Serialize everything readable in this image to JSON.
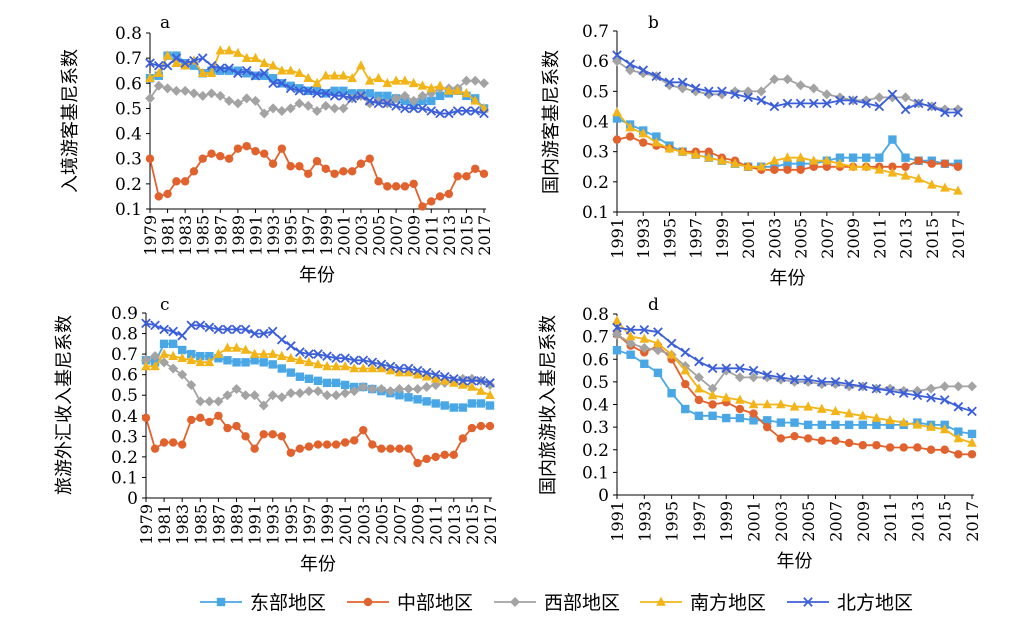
{
  "legend": [
    {
      "name": "东部地区",
      "color": "#4aa7e6",
      "marker": "square"
    },
    {
      "name": "中部地区",
      "color": "#e2622e",
      "marker": "circle"
    },
    {
      "name": "西部地区",
      "color": "#a3a3a3",
      "marker": "diamond"
    },
    {
      "name": "南方地区",
      "color": "#f3b418",
      "marker": "triangle"
    },
    {
      "name": "北方地区",
      "color": "#3b5fd9",
      "marker": "x"
    }
  ],
  "chart_data": [
    {
      "type": "line",
      "panel": "a",
      "title": "a",
      "xlabel": "年份",
      "ylabel": "入境游客基尼系数",
      "ylim": [
        0.1,
        0.8
      ],
      "yticks": [
        "0.1",
        "0.2",
        "0.3",
        "0.4",
        "0.5",
        "0.6",
        "0.7",
        "0.8"
      ],
      "x": [
        1979,
        1980,
        1981,
        1982,
        1983,
        1984,
        1985,
        1986,
        1987,
        1988,
        1989,
        1990,
        1991,
        1992,
        1993,
        1994,
        1995,
        1996,
        1997,
        1998,
        1999,
        2000,
        2001,
        2002,
        2003,
        2004,
        2005,
        2006,
        2007,
        2008,
        2009,
        2010,
        2011,
        2012,
        2013,
        2014,
        2015,
        2016,
        2017
      ],
      "xticks": [
        "1979",
        "1981",
        "1983",
        "1985",
        "1987",
        "1989",
        "1991",
        "1993",
        "1995",
        "1997",
        "1999",
        "2001",
        "2003",
        "2005",
        "2007",
        "2009",
        "2011",
        "2013",
        "2015",
        "2017"
      ],
      "series": [
        {
          "name": "东部地区",
          "values": [
            0.62,
            0.63,
            0.71,
            0.71,
            0.68,
            0.67,
            0.64,
            0.65,
            0.65,
            0.65,
            0.65,
            0.64,
            0.63,
            0.63,
            0.62,
            0.6,
            0.59,
            0.58,
            0.57,
            0.57,
            0.56,
            0.57,
            0.57,
            0.56,
            0.56,
            0.56,
            0.55,
            0.55,
            0.54,
            0.53,
            0.52,
            0.53,
            0.53,
            0.55,
            0.56,
            0.57,
            0.55,
            0.54,
            0.5
          ]
        },
        {
          "name": "中部地区",
          "values": [
            0.3,
            0.15,
            0.16,
            0.21,
            0.21,
            0.25,
            0.3,
            0.32,
            0.31,
            0.3,
            0.34,
            0.35,
            0.33,
            0.32,
            0.28,
            0.34,
            0.27,
            0.27,
            0.24,
            0.29,
            0.26,
            0.24,
            0.25,
            0.25,
            0.28,
            0.3,
            0.21,
            0.19,
            0.19,
            0.19,
            0.2,
            0.11,
            0.13,
            0.15,
            0.16,
            0.23,
            0.23,
            0.26,
            0.24
          ]
        },
        {
          "name": "西部地区",
          "values": [
            0.54,
            0.59,
            0.58,
            0.57,
            0.57,
            0.56,
            0.55,
            0.56,
            0.55,
            0.53,
            0.52,
            0.54,
            0.53,
            0.48,
            0.5,
            0.49,
            0.5,
            0.52,
            0.51,
            0.49,
            0.51,
            0.5,
            0.5,
            0.54,
            0.55,
            0.52,
            0.53,
            0.52,
            0.54,
            0.55,
            0.53,
            0.55,
            0.56,
            0.58,
            0.58,
            0.58,
            0.61,
            0.61,
            0.6
          ]
        },
        {
          "name": "南方地区",
          "values": [
            0.62,
            0.64,
            0.71,
            0.68,
            0.67,
            0.69,
            0.64,
            0.64,
            0.73,
            0.73,
            0.72,
            0.7,
            0.7,
            0.68,
            0.67,
            0.65,
            0.65,
            0.64,
            0.62,
            0.6,
            0.63,
            0.63,
            0.63,
            0.62,
            0.67,
            0.61,
            0.62,
            0.6,
            0.61,
            0.61,
            0.6,
            0.59,
            0.58,
            0.59,
            0.57,
            0.57,
            0.56,
            0.53,
            0.5
          ]
        },
        {
          "name": "北方地区",
          "values": [
            0.68,
            0.67,
            0.67,
            0.7,
            0.68,
            0.69,
            0.7,
            0.67,
            0.66,
            0.66,
            0.64,
            0.65,
            0.63,
            0.64,
            0.6,
            0.6,
            0.58,
            0.57,
            0.57,
            0.56,
            0.56,
            0.55,
            0.55,
            0.54,
            0.55,
            0.53,
            0.52,
            0.52,
            0.51,
            0.5,
            0.5,
            0.5,
            0.49,
            0.48,
            0.48,
            0.49,
            0.49,
            0.49,
            0.48
          ]
        }
      ]
    },
    {
      "type": "line",
      "panel": "b",
      "title": "b",
      "xlabel": "年份",
      "ylabel": "国内游客基尼系数",
      "ylim": [
        0.1,
        0.7
      ],
      "yticks": [
        "0.1",
        "0.2",
        "0.3",
        "0.4",
        "0.5",
        "0.6",
        "0.7"
      ],
      "x": [
        1991,
        1992,
        1993,
        1994,
        1995,
        1996,
        1997,
        1998,
        1999,
        2000,
        2001,
        2002,
        2003,
        2004,
        2005,
        2006,
        2007,
        2008,
        2009,
        2010,
        2011,
        2012,
        2013,
        2014,
        2015,
        2016,
        2017
      ],
      "xticks": [
        "1991",
        "1993",
        "1995",
        "1997",
        "1999",
        "2001",
        "2003",
        "2005",
        "2007",
        "2009",
        "2011",
        "2013",
        "2015",
        "2017"
      ],
      "series": [
        {
          "name": "东部地区",
          "values": [
            0.41,
            0.39,
            0.37,
            0.35,
            0.32,
            0.3,
            0.29,
            0.28,
            0.27,
            0.26,
            0.25,
            0.25,
            0.25,
            0.26,
            0.26,
            0.26,
            0.27,
            0.28,
            0.28,
            0.28,
            0.28,
            0.34,
            0.28,
            0.27,
            0.27,
            0.26,
            0.26
          ]
        },
        {
          "name": "中部地区",
          "values": [
            0.34,
            0.35,
            0.33,
            0.32,
            0.31,
            0.3,
            0.3,
            0.3,
            0.28,
            0.27,
            0.25,
            0.24,
            0.24,
            0.24,
            0.24,
            0.25,
            0.25,
            0.25,
            0.25,
            0.25,
            0.25,
            0.25,
            0.25,
            0.27,
            0.26,
            0.26,
            0.25
          ]
        },
        {
          "name": "西部地区",
          "values": [
            0.6,
            0.57,
            0.56,
            0.55,
            0.52,
            0.51,
            0.5,
            0.49,
            0.49,
            0.5,
            0.5,
            0.5,
            0.54,
            0.54,
            0.52,
            0.51,
            0.49,
            0.48,
            0.47,
            0.47,
            0.48,
            0.48,
            0.48,
            0.46,
            0.45,
            0.44,
            0.44
          ]
        },
        {
          "name": "南方地区",
          "values": [
            0.43,
            0.38,
            0.36,
            0.33,
            0.31,
            0.3,
            0.29,
            0.28,
            0.27,
            0.26,
            0.25,
            0.25,
            0.27,
            0.28,
            0.28,
            0.27,
            0.27,
            0.26,
            0.25,
            0.25,
            0.24,
            0.23,
            0.22,
            0.21,
            0.19,
            0.18,
            0.17
          ]
        },
        {
          "name": "北方地区",
          "values": [
            0.62,
            0.59,
            0.57,
            0.55,
            0.53,
            0.53,
            0.51,
            0.5,
            0.5,
            0.49,
            0.48,
            0.47,
            0.45,
            0.46,
            0.46,
            0.46,
            0.46,
            0.47,
            0.47,
            0.46,
            0.45,
            0.49,
            0.44,
            0.46,
            0.45,
            0.43,
            0.43
          ]
        }
      ]
    },
    {
      "type": "line",
      "panel": "c",
      "title": "c",
      "xlabel": "年份",
      "ylabel": "旅游外汇收入基尼系数",
      "ylim": [
        0,
        0.9
      ],
      "yticks": [
        "0",
        "0.1",
        "0.2",
        "0.3",
        "0.4",
        "0.5",
        "0.6",
        "0.7",
        "0.8",
        "0.9"
      ],
      "x": [
        1979,
        1980,
        1981,
        1982,
        1983,
        1984,
        1985,
        1986,
        1987,
        1988,
        1989,
        1990,
        1991,
        1992,
        1993,
        1994,
        1995,
        1996,
        1997,
        1998,
        1999,
        2000,
        2001,
        2002,
        2003,
        2004,
        2005,
        2006,
        2007,
        2008,
        2009,
        2010,
        2011,
        2012,
        2013,
        2014,
        2015,
        2016,
        2017
      ],
      "xticks": [
        "1979",
        "1981",
        "1983",
        "1985",
        "1987",
        "1989",
        "1991",
        "1993",
        "1995",
        "1997",
        "1999",
        "2001",
        "2003",
        "2005",
        "2007",
        "2009",
        "2011",
        "2013",
        "2015",
        "2017"
      ],
      "series": [
        {
          "name": "东部地区",
          "values": [
            0.67,
            0.66,
            0.75,
            0.75,
            0.72,
            0.7,
            0.69,
            0.69,
            0.68,
            0.67,
            0.66,
            0.66,
            0.67,
            0.66,
            0.65,
            0.63,
            0.61,
            0.59,
            0.58,
            0.57,
            0.56,
            0.56,
            0.55,
            0.54,
            0.54,
            0.53,
            0.52,
            0.51,
            0.5,
            0.49,
            0.48,
            0.47,
            0.46,
            0.45,
            0.44,
            0.44,
            0.46,
            0.46,
            0.45
          ]
        },
        {
          "name": "中部地区",
          "values": [
            0.39,
            0.24,
            0.27,
            0.27,
            0.26,
            0.38,
            0.39,
            0.37,
            0.4,
            0.34,
            0.35,
            0.3,
            0.24,
            0.31,
            0.31,
            0.3,
            0.22,
            0.24,
            0.25,
            0.26,
            0.26,
            0.26,
            0.27,
            0.28,
            0.33,
            0.26,
            0.24,
            0.24,
            0.24,
            0.24,
            0.17,
            0.19,
            0.2,
            0.21,
            0.21,
            0.29,
            0.34,
            0.35,
            0.35
          ]
        },
        {
          "name": "西部地区",
          "values": [
            0.67,
            0.69,
            0.66,
            0.63,
            0.6,
            0.55,
            0.47,
            0.47,
            0.47,
            0.5,
            0.53,
            0.5,
            0.5,
            0.45,
            0.5,
            0.49,
            0.51,
            0.51,
            0.52,
            0.52,
            0.5,
            0.5,
            0.51,
            0.52,
            0.54,
            0.53,
            0.53,
            0.52,
            0.53,
            0.53,
            0.53,
            0.54,
            0.55,
            0.56,
            0.57,
            0.58,
            0.58,
            0.57,
            0.55
          ]
        },
        {
          "name": "南方地区",
          "values": [
            0.64,
            0.64,
            0.7,
            0.69,
            0.68,
            0.67,
            0.66,
            0.66,
            0.7,
            0.73,
            0.73,
            0.72,
            0.7,
            0.7,
            0.7,
            0.69,
            0.68,
            0.67,
            0.66,
            0.65,
            0.64,
            0.64,
            0.64,
            0.63,
            0.63,
            0.63,
            0.63,
            0.62,
            0.61,
            0.61,
            0.6,
            0.59,
            0.58,
            0.57,
            0.56,
            0.55,
            0.54,
            0.52,
            0.5
          ]
        },
        {
          "name": "北方地区",
          "values": [
            0.85,
            0.84,
            0.82,
            0.81,
            0.79,
            0.84,
            0.84,
            0.83,
            0.82,
            0.82,
            0.82,
            0.82,
            0.8,
            0.8,
            0.81,
            0.77,
            0.74,
            0.71,
            0.7,
            0.7,
            0.69,
            0.68,
            0.68,
            0.67,
            0.67,
            0.66,
            0.65,
            0.64,
            0.63,
            0.63,
            0.62,
            0.61,
            0.6,
            0.59,
            0.58,
            0.57,
            0.57,
            0.57,
            0.56
          ]
        }
      ]
    },
    {
      "type": "line",
      "panel": "d",
      "title": "d",
      "xlabel": "年份",
      "ylabel": "国内旅游收入基尼系数",
      "ylim": [
        0,
        0.8
      ],
      "yticks": [
        "0",
        "0.1",
        "0.2",
        "0.3",
        "0.4",
        "0.5",
        "0.6",
        "0.7",
        "0.8"
      ],
      "x": [
        1991,
        1992,
        1993,
        1994,
        1995,
        1996,
        1997,
        1998,
        1999,
        2000,
        2001,
        2002,
        2003,
        2004,
        2005,
        2006,
        2007,
        2008,
        2009,
        2010,
        2011,
        2012,
        2013,
        2014,
        2015,
        2016,
        2017
      ],
      "xticks": [
        "1991",
        "1993",
        "1995",
        "1997",
        "1999",
        "2001",
        "2003",
        "2005",
        "2007",
        "2009",
        "2011",
        "2013",
        "2015",
        "2017"
      ],
      "series": [
        {
          "name": "东部地区",
          "values": [
            0.64,
            0.62,
            0.58,
            0.54,
            0.45,
            0.38,
            0.35,
            0.35,
            0.34,
            0.34,
            0.33,
            0.33,
            0.32,
            0.32,
            0.31,
            0.31,
            0.31,
            0.31,
            0.31,
            0.31,
            0.31,
            0.31,
            0.32,
            0.31,
            0.31,
            0.28,
            0.27
          ]
        },
        {
          "name": "中部地区",
          "values": [
            0.71,
            0.66,
            0.63,
            0.66,
            0.6,
            0.49,
            0.42,
            0.4,
            0.41,
            0.38,
            0.36,
            0.3,
            0.25,
            0.26,
            0.25,
            0.24,
            0.24,
            0.23,
            0.22,
            0.22,
            0.21,
            0.21,
            0.21,
            0.2,
            0.2,
            0.18,
            0.18
          ]
        },
        {
          "name": "西部地区",
          "values": [
            0.71,
            0.67,
            0.65,
            0.64,
            0.62,
            0.57,
            0.52,
            0.47,
            0.55,
            0.52,
            0.52,
            0.52,
            0.51,
            0.5,
            0.5,
            0.49,
            0.49,
            0.48,
            0.48,
            0.47,
            0.47,
            0.46,
            0.46,
            0.47,
            0.48,
            0.48,
            0.48
          ]
        },
        {
          "name": "南方地区",
          "values": [
            0.77,
            0.7,
            0.69,
            0.67,
            0.62,
            0.55,
            0.47,
            0.44,
            0.43,
            0.42,
            0.4,
            0.4,
            0.4,
            0.39,
            0.39,
            0.38,
            0.37,
            0.36,
            0.35,
            0.34,
            0.33,
            0.32,
            0.31,
            0.3,
            0.29,
            0.25,
            0.23
          ]
        },
        {
          "name": "北方地区",
          "values": [
            0.74,
            0.73,
            0.73,
            0.72,
            0.67,
            0.63,
            0.59,
            0.56,
            0.56,
            0.56,
            0.55,
            0.53,
            0.52,
            0.51,
            0.51,
            0.5,
            0.5,
            0.49,
            0.48,
            0.47,
            0.46,
            0.45,
            0.44,
            0.43,
            0.42,
            0.39,
            0.37
          ]
        }
      ]
    }
  ]
}
